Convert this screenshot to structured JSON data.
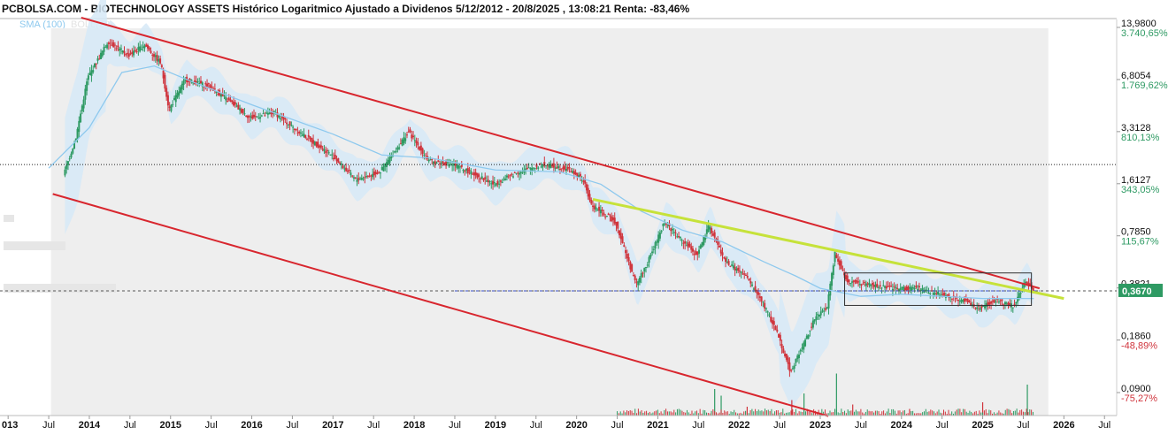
{
  "header": {
    "title": "PCBOLSA.COM - BIOTECHNOLOGY ASSETS Histórico Logaritmico Ajustado a Dividenos 5/12/2012 - 20/8/2025 , 13:08:21 Renta: -83,46%",
    "legend_sma": "SMA (100)",
    "legend_boll": "BOLL(20)"
  },
  "colors": {
    "up": "#2e9a63",
    "down": "#d0343c",
    "channel": "#d8262e",
    "trendline": "#c6e23a",
    "sma": "#8ec9ee",
    "bollinger_fill": "#d6e9f7",
    "channel_fill": "#ececec",
    "last_price_badge": "#2e9a63"
  },
  "chart_data": {
    "type": "candlestick",
    "scale": "log",
    "y_axis": {
      "ticks": [
        {
          "price": 13.98,
          "label": "13,9800",
          "pct": "3.740,65%",
          "pct_color": "#2e9a63"
        },
        {
          "price": 6.8054,
          "label": "6,8054",
          "pct": "1.769,62%",
          "pct_color": "#2e9a63"
        },
        {
          "price": 3.3128,
          "label": "3,3128",
          "pct": "810,13%",
          "pct_color": "#2e9a63"
        },
        {
          "price": 1.6127,
          "label": "1,6127",
          "pct": "343,05%",
          "pct_color": "#2e9a63"
        },
        {
          "price": 0.785,
          "label": "0,7850",
          "pct": "115,67%",
          "pct_color": "#2e9a63"
        },
        {
          "price": 0.3821,
          "label": "0,3821",
          "pct": "",
          "pct_color": "#2e9a63"
        },
        {
          "price": 0.186,
          "label": "0,1860",
          "pct": "-48,89%",
          "pct_color": "#d0343c"
        },
        {
          "price": 0.09,
          "label": "0,0900",
          "pct": "-75,27%",
          "pct_color": "#d0343c"
        }
      ],
      "last_price": 0.367,
      "last_price_label": "0,3670",
      "reference_price": 2.1
    },
    "x_axis": {
      "ticks": [
        {
          "t": 2013.0,
          "label": "013",
          "bold": true
        },
        {
          "t": 2013.5,
          "label": "Jul",
          "bold": false
        },
        {
          "t": 2014.0,
          "label": "2014",
          "bold": true
        },
        {
          "t": 2014.5,
          "label": "Jul",
          "bold": false
        },
        {
          "t": 2015.0,
          "label": "2015",
          "bold": true
        },
        {
          "t": 2015.5,
          "label": "Jul",
          "bold": false
        },
        {
          "t": 2016.0,
          "label": "2016",
          "bold": true
        },
        {
          "t": 2016.5,
          "label": "Jul",
          "bold": false
        },
        {
          "t": 2017.0,
          "label": "2017",
          "bold": true
        },
        {
          "t": 2017.5,
          "label": "Jul",
          "bold": false
        },
        {
          "t": 2018.0,
          "label": "2018",
          "bold": true
        },
        {
          "t": 2018.5,
          "label": "Jul",
          "bold": false
        },
        {
          "t": 2019.0,
          "label": "2019",
          "bold": true
        },
        {
          "t": 2019.5,
          "label": "Jul",
          "bold": false
        },
        {
          "t": 2020.0,
          "label": "2020",
          "bold": true
        },
        {
          "t": 2020.5,
          "label": "Jul",
          "bold": false
        },
        {
          "t": 2021.0,
          "label": "2021",
          "bold": true
        },
        {
          "t": 2021.5,
          "label": "Jul",
          "bold": false
        },
        {
          "t": 2022.0,
          "label": "2022",
          "bold": true
        },
        {
          "t": 2022.5,
          "label": "Jul",
          "bold": false
        },
        {
          "t": 2023.0,
          "label": "2023",
          "bold": true
        },
        {
          "t": 2023.5,
          "label": "Jul",
          "bold": false
        },
        {
          "t": 2024.0,
          "label": "2024",
          "bold": true
        },
        {
          "t": 2024.5,
          "label": "Jul",
          "bold": false
        },
        {
          "t": 2025.0,
          "label": "2025",
          "bold": true
        },
        {
          "t": 2025.5,
          "label": "Jul",
          "bold": false
        },
        {
          "t": 2026.0,
          "label": "2026",
          "bold": true
        },
        {
          "t": 2026.5,
          "label": "Jul",
          "bold": false
        }
      ]
    },
    "price_path": [
      {
        "t": 2013.7,
        "p": 1.8
      },
      {
        "t": 2013.85,
        "p": 3.0
      },
      {
        "t": 2014.0,
        "p": 7.0
      },
      {
        "t": 2014.25,
        "p": 11.5
      },
      {
        "t": 2014.5,
        "p": 9.5
      },
      {
        "t": 2014.7,
        "p": 11.0
      },
      {
        "t": 2014.9,
        "p": 8.5
      },
      {
        "t": 2015.0,
        "p": 4.5
      },
      {
        "t": 2015.2,
        "p": 6.8
      },
      {
        "t": 2015.5,
        "p": 6.2
      },
      {
        "t": 2015.8,
        "p": 4.8
      },
      {
        "t": 2016.0,
        "p": 4.0
      },
      {
        "t": 2016.3,
        "p": 4.3
      },
      {
        "t": 2016.6,
        "p": 3.3
      },
      {
        "t": 2017.0,
        "p": 2.4
      },
      {
        "t": 2017.3,
        "p": 1.7
      },
      {
        "t": 2017.6,
        "p": 1.9
      },
      {
        "t": 2017.95,
        "p": 3.3
      },
      {
        "t": 2018.2,
        "p": 2.2
      },
      {
        "t": 2018.5,
        "p": 2.1
      },
      {
        "t": 2018.8,
        "p": 1.8
      },
      {
        "t": 2019.0,
        "p": 1.6
      },
      {
        "t": 2019.3,
        "p": 1.9
      },
      {
        "t": 2019.6,
        "p": 2.1
      },
      {
        "t": 2019.9,
        "p": 2.0
      },
      {
        "t": 2020.1,
        "p": 1.7
      },
      {
        "t": 2020.2,
        "p": 1.2
      },
      {
        "t": 2020.5,
        "p": 0.95
      },
      {
        "t": 2020.75,
        "p": 0.4
      },
      {
        "t": 2020.9,
        "p": 0.55
      },
      {
        "t": 2021.1,
        "p": 0.95
      },
      {
        "t": 2021.3,
        "p": 0.75
      },
      {
        "t": 2021.5,
        "p": 0.6
      },
      {
        "t": 2021.65,
        "p": 0.9
      },
      {
        "t": 2021.85,
        "p": 0.55
      },
      {
        "t": 2022.1,
        "p": 0.45
      },
      {
        "t": 2022.3,
        "p": 0.32
      },
      {
        "t": 2022.5,
        "p": 0.2
      },
      {
        "t": 2022.65,
        "p": 0.12
      },
      {
        "t": 2022.8,
        "p": 0.17
      },
      {
        "t": 2022.95,
        "p": 0.25
      },
      {
        "t": 2023.1,
        "p": 0.29
      },
      {
        "t": 2023.2,
        "p": 0.62
      },
      {
        "t": 2023.35,
        "p": 0.42
      },
      {
        "t": 2023.6,
        "p": 0.4
      },
      {
        "t": 2023.9,
        "p": 0.38
      },
      {
        "t": 2024.2,
        "p": 0.38
      },
      {
        "t": 2024.5,
        "p": 0.35
      },
      {
        "t": 2024.8,
        "p": 0.32
      },
      {
        "t": 2024.95,
        "p": 0.29
      },
      {
        "t": 2025.2,
        "p": 0.32
      },
      {
        "t": 2025.4,
        "p": 0.3
      },
      {
        "t": 2025.55,
        "p": 0.42
      },
      {
        "t": 2025.63,
        "p": 0.367
      }
    ],
    "sma_path": [
      {
        "t": 2013.5,
        "p": 2.0
      },
      {
        "t": 2014.0,
        "p": 3.5
      },
      {
        "t": 2014.4,
        "p": 7.5
      },
      {
        "t": 2014.8,
        "p": 8.2
      },
      {
        "t": 2015.3,
        "p": 6.5
      },
      {
        "t": 2016.0,
        "p": 4.8
      },
      {
        "t": 2017.0,
        "p": 3.2
      },
      {
        "t": 2017.6,
        "p": 2.4
      },
      {
        "t": 2018.2,
        "p": 2.3
      },
      {
        "t": 2019.0,
        "p": 1.95
      },
      {
        "t": 2019.8,
        "p": 1.9
      },
      {
        "t": 2020.3,
        "p": 1.6
      },
      {
        "t": 2020.8,
        "p": 1.1
      },
      {
        "t": 2021.3,
        "p": 0.85
      },
      {
        "t": 2021.8,
        "p": 0.72
      },
      {
        "t": 2022.3,
        "p": 0.55
      },
      {
        "t": 2022.7,
        "p": 0.45
      },
      {
        "t": 2023.0,
        "p": 0.38
      },
      {
        "t": 2023.5,
        "p": 0.34
      },
      {
        "t": 2024.0,
        "p": 0.35
      },
      {
        "t": 2024.5,
        "p": 0.34
      },
      {
        "t": 2025.0,
        "p": 0.33
      },
      {
        "t": 2025.63,
        "p": 0.33
      }
    ],
    "channel": {
      "upper": [
        {
          "t": 2013.9,
          "p": 16.0
        },
        {
          "t": 2025.7,
          "p": 0.38
        }
      ],
      "lower": [
        {
          "t": 2013.55,
          "p": 1.4
        },
        {
          "t": 2023.1,
          "p": 0.065
        }
      ],
      "end_t": 2025.7,
      "start_t": 2013.55
    },
    "trendline": [
      {
        "t": 2020.2,
        "p": 1.3
      },
      {
        "t": 2026.0,
        "p": 0.33
      }
    ],
    "consolidation_box": {
      "t0": 2023.3,
      "t1": 2025.6,
      "p_high": 0.47,
      "p_low": 0.3
    },
    "volume_spikes": [
      {
        "t": 2021.7,
        "v": 0.6
      },
      {
        "t": 2021.78,
        "v": 0.45
      },
      {
        "t": 2022.1,
        "v": 0.2
      },
      {
        "t": 2022.65,
        "v": 0.35
      },
      {
        "t": 2022.8,
        "v": 0.5
      },
      {
        "t": 2023.2,
        "v": 0.95
      },
      {
        "t": 2023.4,
        "v": 0.25
      },
      {
        "t": 2024.1,
        "v": 0.15
      },
      {
        "t": 2025.0,
        "v": 0.3
      },
      {
        "t": 2025.55,
        "v": 0.7
      }
    ]
  }
}
